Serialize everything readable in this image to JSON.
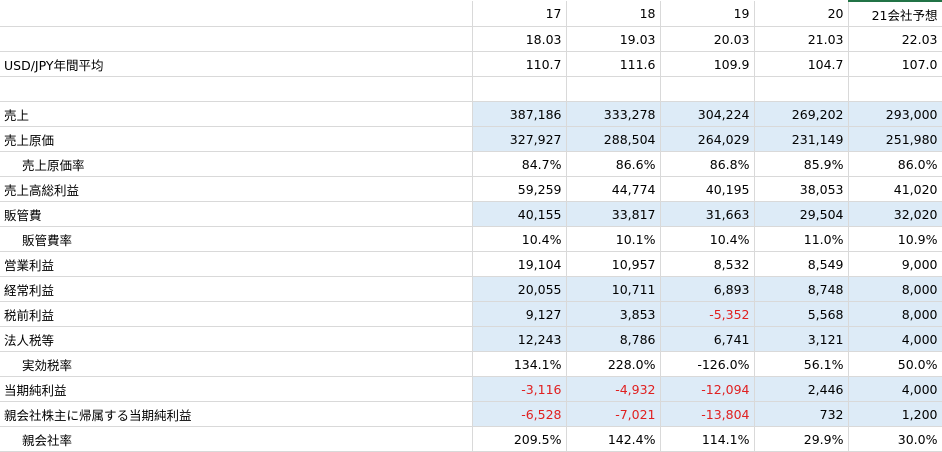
{
  "table": {
    "header_years": [
      "17",
      "18",
      "19",
      "20",
      "21会社予想"
    ],
    "header_periods": [
      "18.03",
      "19.03",
      "20.03",
      "21.03",
      "22.03"
    ],
    "highlight_header_column": 4,
    "rows": [
      {
        "label": "USD/JPY年間平均",
        "cells": [
          "110.7",
          "111.6",
          "109.9",
          "104.7",
          "107.0"
        ]
      },
      {
        "label": null,
        "cells": [
          null,
          null,
          null,
          null,
          null
        ]
      },
      {
        "label": "売上",
        "cells": [
          "387,186",
          "333,278",
          "304,224",
          "269,202",
          "293,000"
        ],
        "shaded": true
      },
      {
        "label": "売上原価",
        "cells": [
          "327,927",
          "288,504",
          "264,029",
          "231,149",
          "251,980"
        ],
        "shaded": true
      },
      {
        "label": "売上原価率",
        "cells": [
          "84.7%",
          "86.6%",
          "86.8%",
          "85.9%",
          "86.0%"
        ],
        "indent": true
      },
      {
        "label": "売上高総利益",
        "cells": [
          "59,259",
          "44,774",
          "40,195",
          "38,053",
          "41,020"
        ]
      },
      {
        "label": "販管費",
        "cells": [
          "40,155",
          "33,817",
          "31,663",
          "29,504",
          "32,020"
        ],
        "shaded": true
      },
      {
        "label": "販管費率",
        "cells": [
          "10.4%",
          "10.1%",
          "10.4%",
          "11.0%",
          "10.9%"
        ],
        "indent": true
      },
      {
        "label": "営業利益",
        "cells": [
          "19,104",
          "10,957",
          "8,532",
          "8,549",
          "9,000"
        ]
      },
      {
        "label": "経常利益",
        "cells": [
          "20,055",
          "10,711",
          "6,893",
          "8,748",
          "8,000"
        ],
        "shaded": true
      },
      {
        "label": "税前利益",
        "cells": [
          "9,127",
          "3,853",
          "-5,352",
          "5,568",
          "8,000"
        ],
        "shaded": true,
        "red": [
          2
        ]
      },
      {
        "label": "法人税等",
        "cells": [
          "12,243",
          "8,786",
          "6,741",
          "3,121",
          "4,000"
        ],
        "shaded": true
      },
      {
        "label": "実効税率",
        "cells": [
          "134.1%",
          "228.0%",
          "-126.0%",
          "56.1%",
          "50.0%"
        ],
        "indent": true
      },
      {
        "label": "当期純利益",
        "cells": [
          "-3,116",
          "-4,932",
          "-12,094",
          "2,446",
          "4,000"
        ],
        "shaded": true,
        "red": [
          0,
          1,
          2
        ]
      },
      {
        "label": "親会社株主に帰属する当期純利益",
        "cells": [
          "-6,528",
          "-7,021",
          "-13,804",
          "732",
          "1,200"
        ],
        "shaded": true,
        "red": [
          0,
          1,
          2
        ]
      },
      {
        "label": "親会社率",
        "cells": [
          "209.5%",
          "142.4%",
          "114.1%",
          "29.9%",
          "30.0%"
        ],
        "indent": true
      }
    ]
  }
}
